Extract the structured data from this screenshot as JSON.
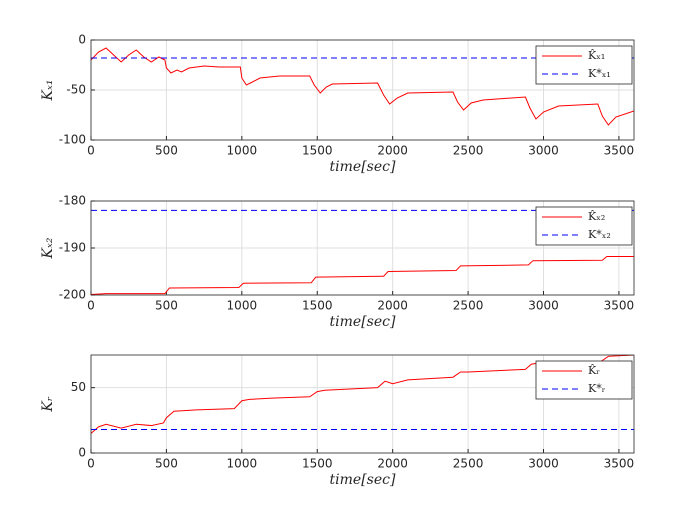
{
  "chart_data": [
    {
      "type": "line",
      "ylabel": "Kₓ₁",
      "xlabel": "time[sec]",
      "grid": true,
      "legend": "upper right",
      "xlim": [
        0,
        3600
      ],
      "xticks": [
        0,
        500,
        1000,
        1500,
        2000,
        2500,
        3000,
        3500
      ],
      "ylim": [
        -100,
        0
      ],
      "yticks": [
        -100,
        -50,
        0
      ],
      "series": [
        {
          "name": "K̂ₓ₁",
          "color": "#ff0000",
          "style": "solid",
          "x": [
            0,
            50,
            100,
            150,
            200,
            250,
            300,
            350,
            400,
            450,
            490,
            500,
            530,
            570,
            600,
            650,
            750,
            850,
            950,
            990,
            1000,
            1030,
            1070,
            1120,
            1250,
            1450,
            1480,
            1520,
            1560,
            1600,
            1900,
            1940,
            1980,
            2030,
            2100,
            2400,
            2430,
            2470,
            2520,
            2600,
            2880,
            2910,
            2950,
            3000,
            3100,
            3360,
            3390,
            3430,
            3480,
            3600
          ],
          "values": [
            -20,
            -12,
            -8,
            -15,
            -22,
            -15,
            -10,
            -17,
            -22,
            -17,
            -20,
            -28,
            -33,
            -30,
            -32,
            -28,
            -26,
            -27,
            -27,
            -27,
            -38,
            -45,
            -42,
            -38,
            -36,
            -36,
            -45,
            -53,
            -47,
            -44,
            -43,
            -55,
            -64,
            -58,
            -53,
            -52,
            -62,
            -70,
            -63,
            -60,
            -57,
            -68,
            -79,
            -72,
            -66,
            -64,
            -76,
            -85,
            -77,
            -71
          ]
        },
        {
          "name": "K*ₓ₁",
          "color": "#0000ff",
          "style": "dashed",
          "x": [
            0,
            3600
          ],
          "values": [
            -18,
            -18
          ]
        }
      ]
    },
    {
      "type": "line",
      "ylabel": "Kₓ₂",
      "xlabel": "time[sec]",
      "grid": true,
      "legend": "upper right",
      "xlim": [
        0,
        3600
      ],
      "xticks": [
        0,
        500,
        1000,
        1500,
        2000,
        2500,
        3000,
        3500
      ],
      "ylim": [
        -200,
        -180
      ],
      "yticks": [
        -200,
        -190,
        -180
      ],
      "series": [
        {
          "name": "K̂ₓ₂",
          "color": "#ff0000",
          "style": "solid",
          "x": [
            0,
            100,
            490,
            520,
            980,
            1010,
            1460,
            1490,
            1940,
            1970,
            2420,
            2450,
            2900,
            2930,
            3390,
            3420,
            3600
          ],
          "values": [
            -199.9,
            -199.7,
            -199.7,
            -198.5,
            -198.4,
            -197.5,
            -197.4,
            -196.2,
            -196.0,
            -195.0,
            -194.8,
            -193.8,
            -193.6,
            -192.7,
            -192.6,
            -191.8,
            -191.8
          ]
        },
        {
          "name": "K*ₓ₂",
          "color": "#0000ff",
          "style": "dashed",
          "x": [
            0,
            3600
          ],
          "values": [
            -182,
            -182
          ]
        }
      ]
    },
    {
      "type": "line",
      "ylabel": "Kᵣ",
      "xlabel": "time[sec]",
      "grid": true,
      "legend": "upper right",
      "xlim": [
        0,
        3600
      ],
      "xticks": [
        0,
        500,
        1000,
        1500,
        2000,
        2500,
        3000,
        3500
      ],
      "ylim": [
        0,
        75
      ],
      "yticks": [
        0,
        50
      ],
      "series": [
        {
          "name": "K̂ᵣ",
          "color": "#ff0000",
          "style": "solid",
          "x": [
            0,
            50,
            100,
            200,
            300,
            400,
            480,
            500,
            550,
            700,
            950,
            1000,
            1050,
            1200,
            1450,
            1500,
            1550,
            1900,
            1950,
            2000,
            2100,
            2400,
            2450,
            2500,
            2880,
            2920,
            2980,
            3380,
            3430,
            3600
          ],
          "values": [
            15,
            20,
            22,
            19,
            22,
            21,
            23,
            27,
            32,
            33,
            34,
            40,
            41,
            42,
            43,
            47,
            48,
            50,
            55,
            53,
            56,
            58,
            62,
            62,
            64,
            68,
            69,
            70,
            74,
            75
          ]
        },
        {
          "name": "K*ᵣ",
          "color": "#0000ff",
          "style": "dashed",
          "x": [
            0,
            3600
          ],
          "values": [
            18,
            18
          ]
        }
      ]
    }
  ]
}
